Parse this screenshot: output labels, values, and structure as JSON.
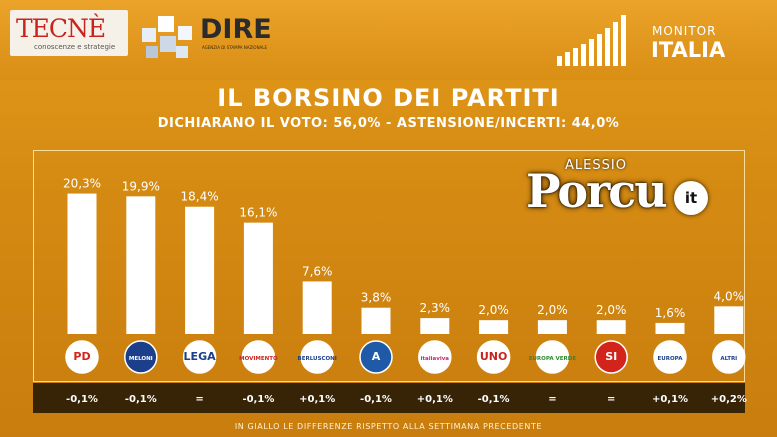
{
  "header": {
    "tecne_name": "TECNÈ",
    "tecne_tagline": "conoscenze e strategie",
    "dire_name": "DIRE",
    "dire_tagline": "AGENZIA DI STAMPA NAZIONALE",
    "monitor_line1": "MONITOR",
    "monitor_line2": "ITALIA"
  },
  "title": "IL BORSINO DEI PARTITI",
  "subtitle": "DICHIARANO IL VOTO: 56,0% - ASTENSIONE/INCERTI: 44,0%",
  "watermark": {
    "top": "ALESSIO",
    "main": "Porcu",
    "badge": "it"
  },
  "footnote": "IN GIALLO LE DIFFERENZE RISPETTO ALLA SETTIMANA PRECEDENTE",
  "colors": {
    "bar": "#ffffff",
    "background": "#d48a12",
    "diff_bar": "#1e1405"
  },
  "chart_data": {
    "type": "bar",
    "categories": [
      "PD",
      "Fratelli d'Italia",
      "Lega",
      "Movimento 5 Stelle",
      "Forza Italia",
      "Azione",
      "Italia Viva",
      "Unione Popolare",
      "Europa Verde",
      "Sinistra Italiana",
      "+Europa",
      "Altri"
    ],
    "values": [
      20.3,
      19.9,
      18.4,
      16.1,
      7.6,
      3.8,
      2.3,
      2.0,
      2.0,
      2.0,
      1.6,
      4.0
    ],
    "value_labels": [
      "20,3%",
      "19,9%",
      "18,4%",
      "16,1%",
      "7,6%",
      "3,8%",
      "2,3%",
      "2,0%",
      "2,0%",
      "2,0%",
      "1,6%",
      "4,0%"
    ],
    "differences": [
      "-0,1%",
      "-0,1%",
      "=",
      "-0,1%",
      "+0,1%",
      "-0,1%",
      "+0,1%",
      "-0,1%",
      "=",
      "=",
      "+0,1%",
      "+0,2%"
    ],
    "ylim": [
      0,
      22
    ],
    "grid": false,
    "logos": [
      {
        "icon": "pd-logo",
        "text": "PD",
        "color": "#d3241c",
        "bg": "#ffffff"
      },
      {
        "icon": "fdi-logo",
        "text": "MELONI",
        "color": "#ffffff",
        "bg": "#1c3f8c"
      },
      {
        "icon": "lega-logo",
        "text": "LEGA",
        "color": "#1c3f8c",
        "bg": "#ffffff"
      },
      {
        "icon": "m5s-logo",
        "text": "MOVIMENTO",
        "color": "#c8241e",
        "bg": "#ffffff"
      },
      {
        "icon": "fi-logo",
        "text": "BERLUSCONI",
        "color": "#1c3f8c",
        "bg": "#ffffff"
      },
      {
        "icon": "azione-logo",
        "text": "A",
        "color": "#ffffff",
        "bg": "#1f5aa8"
      },
      {
        "icon": "italiaviva-logo",
        "text": "italiaviva",
        "color": "#d02070",
        "bg": "#ffffff"
      },
      {
        "icon": "up-logo",
        "text": "UNO",
        "color": "#c8241e",
        "bg": "#ffffff"
      },
      {
        "icon": "europaverde-logo",
        "text": "EUROPA VERDE",
        "color": "#2e8b2e",
        "bg": "#ffffff"
      },
      {
        "icon": "si-logo",
        "text": "SI",
        "color": "#ffffff",
        "bg": "#d3241c"
      },
      {
        "icon": "piueuropa-logo",
        "text": "EUROPA",
        "color": "#1c3f8c",
        "bg": "#ffffff"
      },
      {
        "icon": "altri-logo",
        "text": "ALTRI",
        "color": "#1c3f8c",
        "bg": "#ffffff"
      }
    ]
  }
}
